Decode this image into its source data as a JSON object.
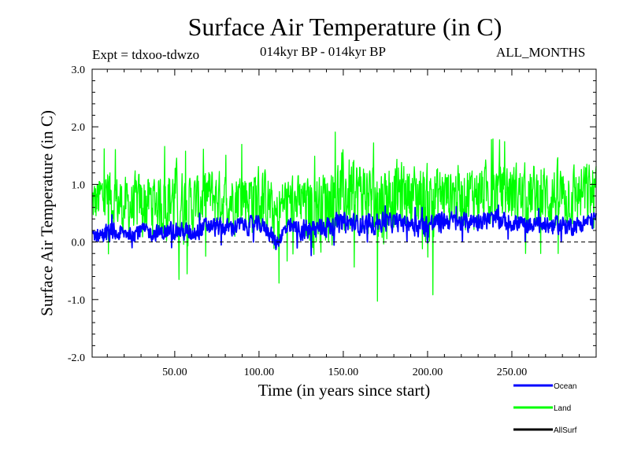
{
  "chart_data": {
    "type": "line",
    "title": "Surface Air Temperature (in C)",
    "expt_label": "Expt = tdxoo-tdwzo",
    "period_label": "014kyr BP - 014kyr BP",
    "months_label": "ALL_MONTHS",
    "xlabel": "Time (in years since start)",
    "ylabel": "Surface Air Temperature (in C)",
    "xlim": [
      1,
      300
    ],
    "ylim": [
      -2.0,
      3.0
    ],
    "x_ticks": [
      50,
      100,
      150,
      200,
      250
    ],
    "x_tick_labels": [
      "50.00",
      "100.00",
      "150.00",
      "200.00",
      "250.00"
    ],
    "y_ticks": [
      -2.0,
      -1.0,
      0.0,
      1.0,
      2.0,
      3.0
    ],
    "y_tick_labels": [
      "-2.0",
      "-1.0",
      "0.0",
      "1.0",
      "2.0",
      "3.0"
    ],
    "zero_line": 0.0,
    "series": [
      {
        "name": "Land",
        "color": "#00ff00",
        "x": [
          1,
          10,
          20,
          30,
          40,
          50,
          60,
          70,
          80,
          90,
          100,
          105,
          110,
          115,
          120,
          130,
          140,
          150,
          160,
          170,
          180,
          190,
          200,
          210,
          220,
          230,
          240,
          250,
          260,
          270,
          280,
          290,
          300
        ],
        "values": [
          0.7,
          0.85,
          0.6,
          0.75,
          0.75,
          0.8,
          0.7,
          0.85,
          0.75,
          0.85,
          0.8,
          0.8,
          0.4,
          0.75,
          0.7,
          0.7,
          0.8,
          0.8,
          0.95,
          0.8,
          0.85,
          0.9,
          0.85,
          0.9,
          0.85,
          0.9,
          0.9,
          0.95,
          0.8,
          0.8,
          0.8,
          0.85,
          0.9
        ],
        "max": [
          1.3,
          1.7,
          1.5,
          1.5,
          1.5,
          1.9,
          1.4,
          1.7,
          1.5,
          1.7,
          1.8,
          1.5,
          1.2,
          1.5,
          1.5,
          1.4,
          1.7,
          2.1,
          1.8,
          1.7,
          1.9,
          1.7,
          1.7,
          1.6,
          1.7,
          1.7,
          1.8,
          1.7,
          1.7,
          1.8,
          1.8,
          1.7,
          1.8
        ],
        "min": [
          -0.3,
          -0.2,
          -0.3,
          -0.7,
          -0.3,
          -0.7,
          -0.5,
          -0.2,
          -0.2,
          -0.2,
          -0.6,
          -0.5,
          -0.9,
          -0.4,
          -0.2,
          -0.8,
          -0.7,
          -0.5,
          -0.4,
          -1.05,
          -0.3,
          -0.2,
          -1.25,
          -0.2,
          -0.2,
          -0.2,
          -0.2,
          -0.2,
          -0.2,
          -0.2,
          -0.2,
          -0.2,
          -0.4
        ]
      },
      {
        "name": "Ocean",
        "color": "#0000ff",
        "x": [
          1,
          10,
          20,
          30,
          40,
          50,
          60,
          70,
          80,
          90,
          100,
          105,
          110,
          115,
          120,
          130,
          140,
          150,
          160,
          170,
          180,
          190,
          200,
          210,
          220,
          230,
          240,
          250,
          260,
          270,
          280,
          290,
          300
        ],
        "values": [
          0.15,
          0.1,
          0.15,
          0.2,
          0.15,
          0.2,
          0.15,
          0.3,
          0.25,
          0.3,
          0.3,
          0.25,
          -0.05,
          0.2,
          0.25,
          0.2,
          0.3,
          0.35,
          0.3,
          0.35,
          0.35,
          0.35,
          0.3,
          0.4,
          0.35,
          0.4,
          0.4,
          0.35,
          0.3,
          0.3,
          0.3,
          0.3,
          0.45
        ],
        "max": [
          0.35,
          0.5,
          0.4,
          0.45,
          0.4,
          0.5,
          0.45,
          0.55,
          0.5,
          0.55,
          0.55,
          0.5,
          0.3,
          0.45,
          0.55,
          0.55,
          0.55,
          0.65,
          0.6,
          0.65,
          0.6,
          0.6,
          0.6,
          0.65,
          0.6,
          0.65,
          0.65,
          0.6,
          0.55,
          0.6,
          0.55,
          0.55,
          0.6
        ],
        "min": [
          -0.15,
          -0.1,
          -0.1,
          -0.1,
          -0.1,
          -0.1,
          -0.1,
          -0.05,
          -0.05,
          0.0,
          0.0,
          -0.05,
          -0.25,
          -0.1,
          -0.05,
          -0.25,
          -0.1,
          0.0,
          0.0,
          0.0,
          0.05,
          0.0,
          -0.25,
          0.05,
          0.0,
          0.05,
          0.05,
          0.05,
          0.0,
          0.0,
          0.0,
          0.0,
          0.05
        ]
      },
      {
        "name": "AllSurf",
        "color": "#000000",
        "x": [],
        "values": []
      }
    ],
    "legend": {
      "placement": "bottom-right",
      "items": [
        "Ocean",
        "Land",
        "AllSurf"
      ]
    }
  }
}
